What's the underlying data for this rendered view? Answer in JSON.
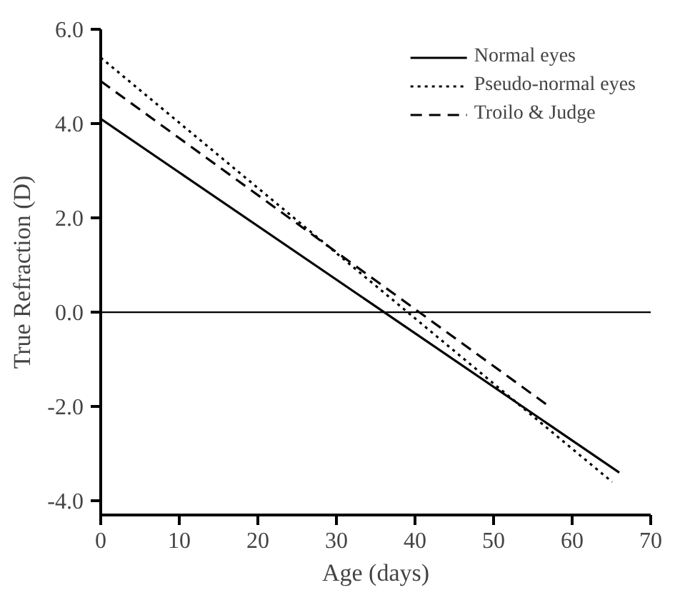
{
  "chart_data": {
    "type": "line",
    "xlabel": "Age (days)",
    "ylabel": "True Refraction (D)",
    "xlim": [
      0,
      70
    ],
    "ylim": [
      -4.3,
      6.0
    ],
    "xticks": [
      0,
      10,
      20,
      30,
      40,
      50,
      60,
      70
    ],
    "yticks": [
      {
        "value": -4,
        "label": "-4.0"
      },
      {
        "value": -2,
        "label": "-2.0"
      },
      {
        "value": 0,
        "label": "0.0"
      },
      {
        "value": 2,
        "label": "2.0"
      },
      {
        "value": 4,
        "label": "4.0"
      },
      {
        "value": 6,
        "label": "6.0"
      }
    ],
    "series": [
      {
        "name": "Normal eyes",
        "color": "#000000",
        "line_style": "solid",
        "x": [
          0,
          66.0
        ],
        "values": [
          4.1,
          -3.4
        ]
      },
      {
        "name": "Pseudo-normal eyes",
        "color": "#000000",
        "line_style": "dotted",
        "x": [
          0,
          65.1
        ],
        "values": [
          5.4,
          -3.6
        ]
      },
      {
        "name": "Troilo & Judge",
        "color": "#000000",
        "line_style": "dashed",
        "x": [
          0,
          57.1
        ],
        "values": [
          4.9,
          -2.0
        ]
      }
    ],
    "ref_lines": [
      {
        "axis": "y",
        "value": 0,
        "color": "#000000"
      }
    ],
    "grid": false,
    "legend": "top right"
  }
}
